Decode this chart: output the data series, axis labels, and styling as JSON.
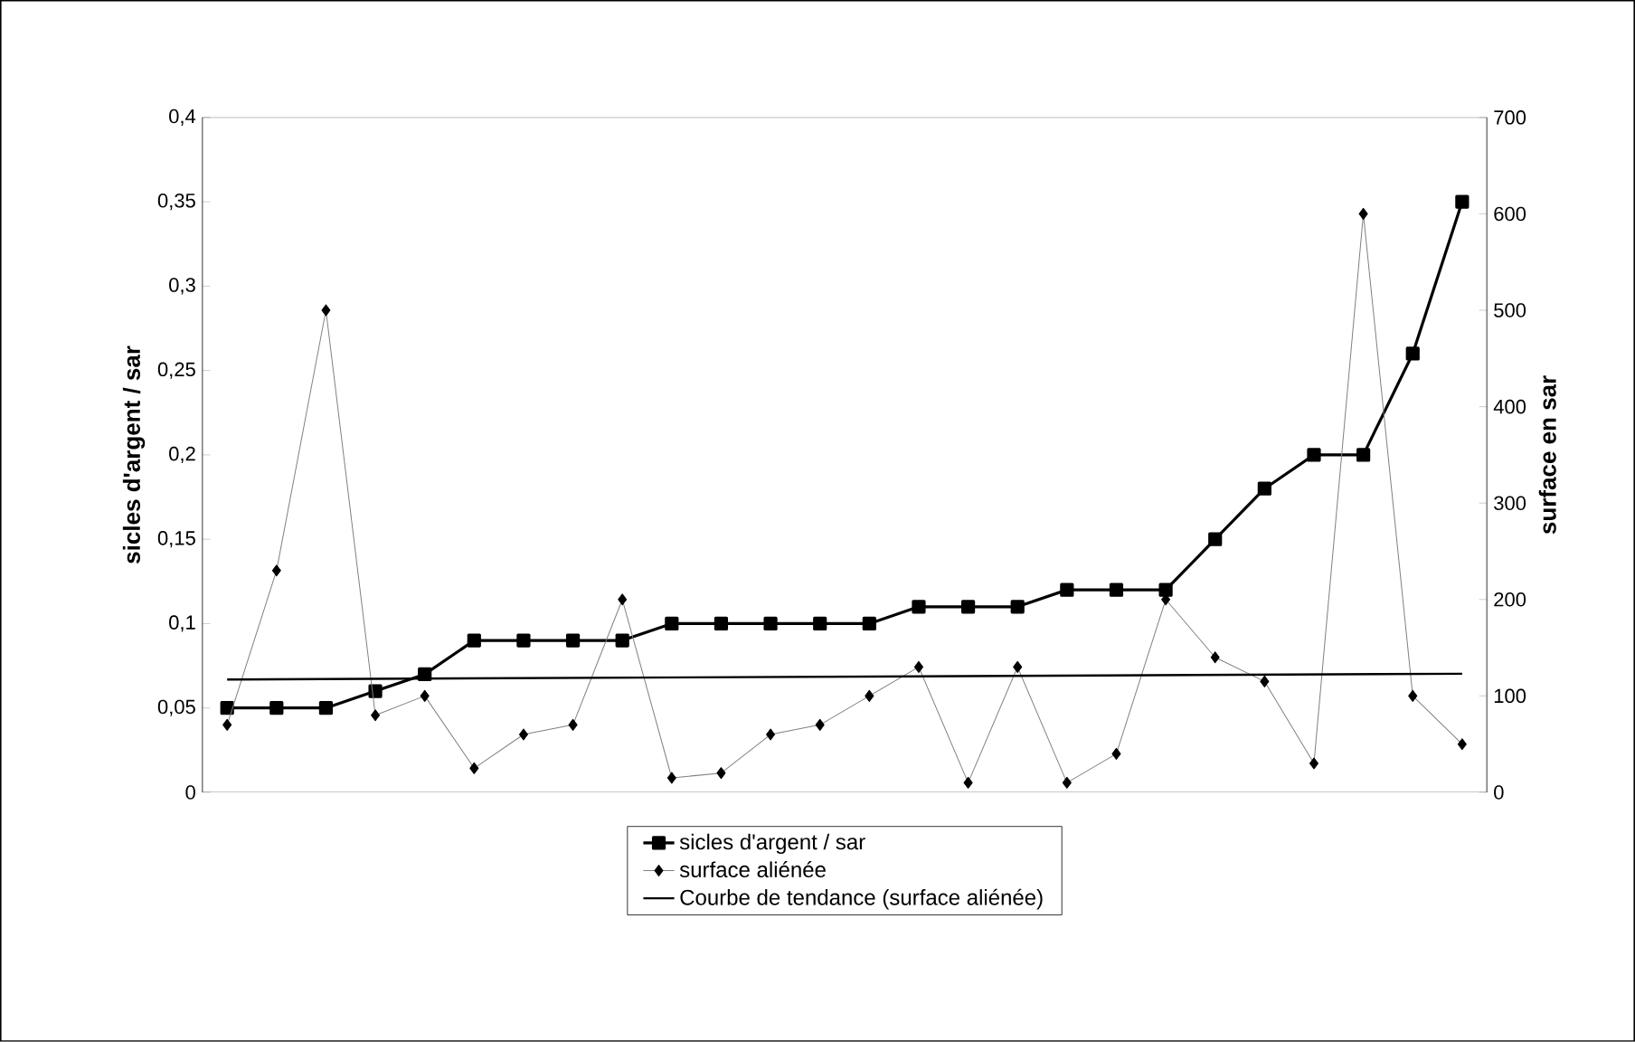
{
  "chart_data": {
    "type": "line",
    "ylabel": "sicles d'argent / sar",
    "y2label": "surface en sar",
    "categories": [
      null,
      null,
      null,
      null,
      null,
      null,
      null,
      null,
      null,
      null,
      null,
      null,
      null,
      null,
      null,
      null,
      null,
      null,
      null,
      null,
      null,
      null,
      null,
      null,
      null,
      null
    ],
    "series": [
      {
        "name": "sicles d'argent / sar",
        "color": "#000000",
        "marker": "square",
        "line_style": "solid",
        "values": [
          0.05,
          0.05,
          0.05,
          0.06,
          0.07,
          0.09,
          0.09,
          0.09,
          0.09,
          0.1,
          0.1,
          0.1,
          0.1,
          0.1,
          0.11,
          0.11,
          0.11,
          0.12,
          0.12,
          0.12,
          0.15,
          0.18,
          0.2,
          0.2,
          0.26,
          0.35
        ]
      },
      {
        "name": "surface aliénée",
        "color": "#808080",
        "marker": "diamond",
        "line_style": "solid",
        "axis": "y2",
        "values": [
          70,
          230,
          500,
          80,
          100,
          25,
          60,
          70,
          200,
          15,
          20,
          60,
          70,
          100,
          130,
          10,
          130,
          10,
          40,
          200,
          140,
          115,
          30,
          600,
          100,
          50
        ]
      },
      {
        "name": "Courbe de tendance (surface aliénée)",
        "color": "#000000",
        "marker": "none",
        "line_style": "solid",
        "axis": "y2",
        "values": [
          117,
          null,
          null,
          null,
          null,
          null,
          null,
          null,
          null,
          null,
          null,
          null,
          null,
          null,
          null,
          null,
          null,
          null,
          null,
          null,
          null,
          null,
          null,
          null,
          null,
          123
        ]
      }
    ],
    "ylim": [
      0,
      0.4
    ],
    "yticks": [
      0,
      {
        "value": 0.05,
        "label": "0,05"
      },
      {
        "value": 0.1,
        "label": "0,1"
      },
      {
        "value": 0.15,
        "label": "0,15"
      },
      {
        "value": 0.2,
        "label": "0,2"
      },
      {
        "value": 0.25,
        "label": "0,25"
      },
      {
        "value": 0.3,
        "label": "0,3"
      },
      {
        "value": 0.35,
        "label": "0,35"
      },
      {
        "value": 0.4,
        "label": "0,4"
      }
    ],
    "y2lim": [
      0,
      700
    ],
    "y2ticks": [
      0,
      100,
      200,
      300,
      400,
      500,
      600,
      700
    ],
    "grid": false,
    "legend": "bottom"
  }
}
